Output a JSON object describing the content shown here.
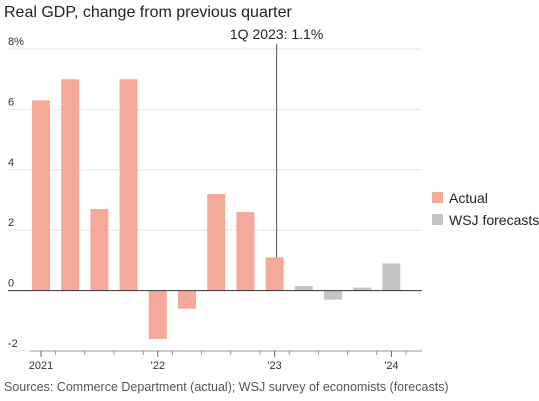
{
  "title": "Real GDP, change from previous quarter",
  "source": "Sources: Commerce Department (actual); WSJ survey of economists (forecasts)",
  "colors": {
    "actual": "#f5a998",
    "forecast": "#c4c4c4",
    "grid": "#e6e6e6",
    "zero_line": "#333333",
    "annotation_line": "#555555"
  },
  "chart_data": {
    "type": "bar",
    "title": "Real GDP, change from previous quarter",
    "xlabel": "",
    "ylabel": "",
    "ylim": [
      -2,
      8
    ],
    "yticks": [
      -2,
      0,
      2,
      4,
      6,
      8
    ],
    "ytick_labels": [
      "-2",
      "0",
      "2",
      "4",
      "6",
      "8%"
    ],
    "grid": true,
    "legend_position": "right",
    "categories": [
      "1Q 2021",
      "2Q 2021",
      "3Q 2021",
      "4Q 2021",
      "1Q 2022",
      "2Q 2022",
      "3Q 2022",
      "4Q 2022",
      "1Q 2023",
      "2Q 2023",
      "3Q 2023",
      "4Q 2023",
      "1Q 2024"
    ],
    "x_tick_labels": [
      {
        "category": "1Q 2021",
        "label": "2021"
      },
      {
        "category": "1Q 2022",
        "label": "'22"
      },
      {
        "category": "1Q 2023",
        "label": "'23"
      },
      {
        "category": "1Q 2024",
        "label": "'24"
      }
    ],
    "series": [
      {
        "name": "Actual",
        "values": [
          6.3,
          7.0,
          2.7,
          7.0,
          -1.6,
          -0.6,
          3.2,
          2.6,
          1.1,
          null,
          null,
          null,
          null
        ]
      },
      {
        "name": "WSJ forecasts",
        "values": [
          null,
          null,
          null,
          null,
          null,
          null,
          null,
          null,
          null,
          0.15,
          -0.3,
          0.1,
          0.9
        ]
      }
    ],
    "annotations": [
      {
        "category": "1Q 2023",
        "text": "1Q 2023: 1.1%"
      }
    ]
  }
}
